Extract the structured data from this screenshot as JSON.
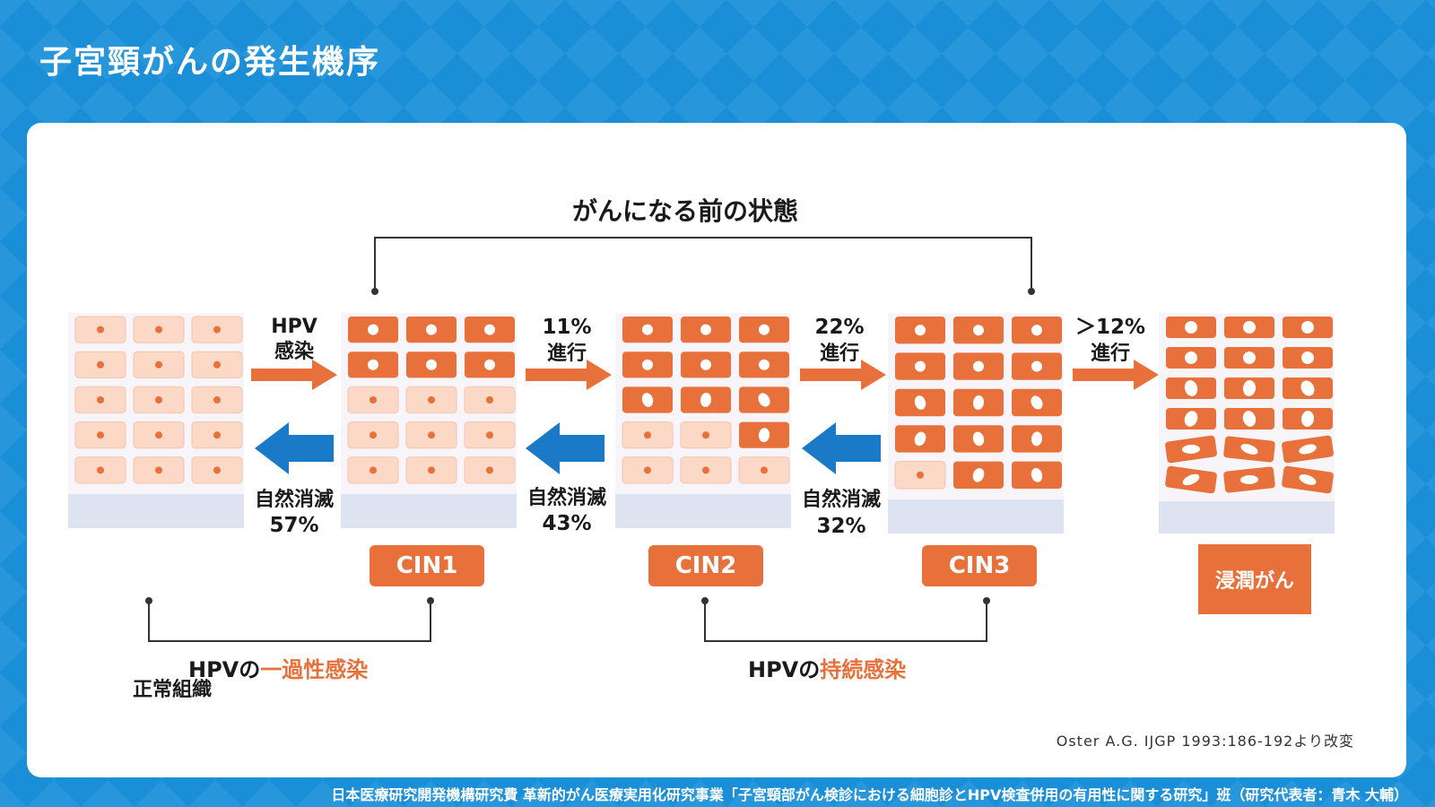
{
  "title": "子宮頸がんの発生機序",
  "precancer_label": "がんになる前の状態",
  "stages": {
    "normal": "正常組織",
    "cin1": "CIN1",
    "cin2": "CIN2",
    "cin3": "CIN3",
    "invasive": "浸潤がん"
  },
  "progression": {
    "hpv_infection": [
      "HPV",
      "感染"
    ],
    "cin1_to_cin2": [
      "11%",
      "進行"
    ],
    "cin2_to_cin3": [
      "22%",
      "進行"
    ],
    "cin3_to_invasive": [
      "＞12%",
      "進行"
    ]
  },
  "regression": {
    "cin1": [
      "自然消滅",
      "57%"
    ],
    "cin2": [
      "自然消滅",
      "43%"
    ],
    "cin3": [
      "自然消滅",
      "32%"
    ]
  },
  "transient_infection": {
    "prefix": "HPVの",
    "highlight": "一過性感染"
  },
  "persistent_infection": {
    "prefix": "HPVの",
    "highlight": "持続感染"
  },
  "citation": "Oster A.G. IJGP 1993:186-192より改変",
  "footer": "日本医療研究開発機構研究費 革新的がん医療実用化研究事業「子宮頸部がん検診における細胞診とHPV検査併用の有用性に関する研究」班（研究代表者：青木 大輔）",
  "colors": {
    "background": "#1a8fd8",
    "accent": "#e8703a",
    "normal_cell": "#fbd9c6",
    "abnormal_cell": "#e8703a",
    "regress_arrow": "#1a7ac8",
    "basement": "#dde3f0"
  }
}
